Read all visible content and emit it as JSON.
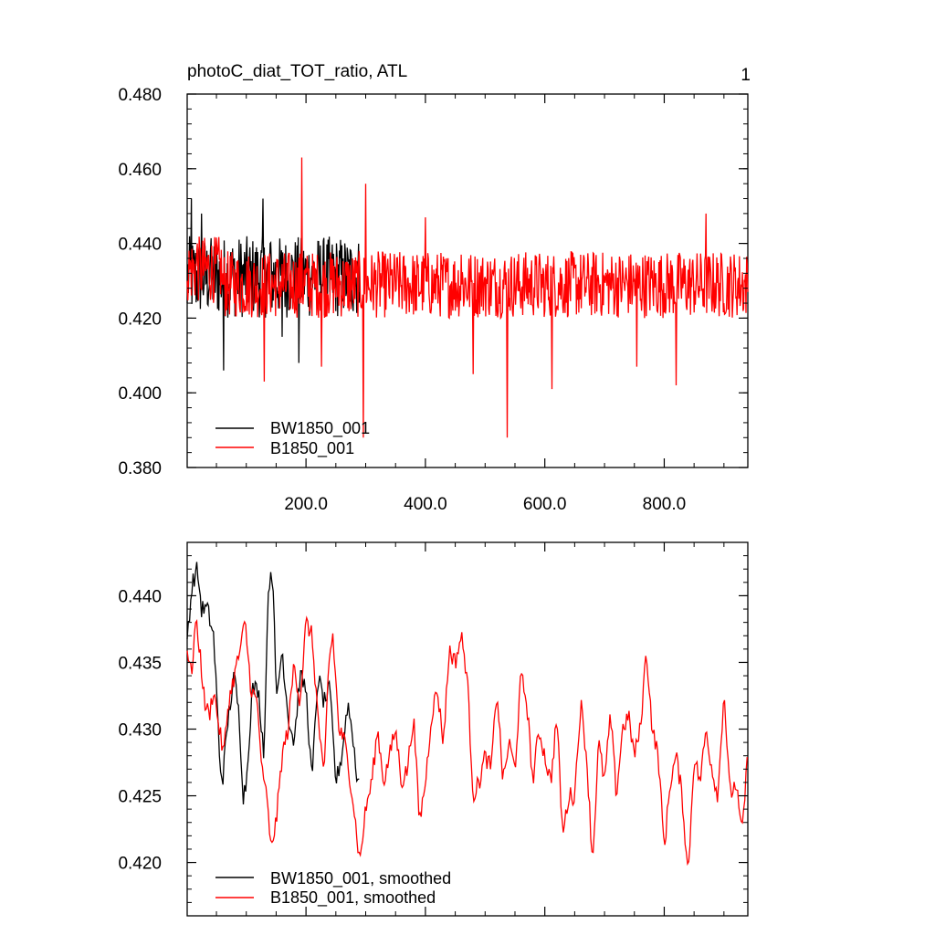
{
  "chart_data": [
    {
      "type": "line",
      "title": "photoC_diat_TOT_ratio, ATL",
      "corner_label": "1",
      "xlabel": "",
      "ylabel": "",
      "xlim": [
        1,
        940
      ],
      "ylim": [
        0.38,
        0.48
      ],
      "yticks": [
        0.38,
        0.4,
        0.42,
        0.44,
        0.46,
        0.48
      ],
      "ytick_labels": [
        "0.380",
        "0.400",
        "0.420",
        "0.440",
        "0.460",
        "0.480"
      ],
      "xticks": [
        200,
        400,
        600,
        800
      ],
      "xtick_labels": [
        "200.0",
        "400.0",
        "600.0",
        "800.0"
      ],
      "legend_position": "bottom-left",
      "series": [
        {
          "name": "BW1850_001",
          "color": "#000000",
          "x_start": 1,
          "x_end": 290,
          "mean": 0.431,
          "amplitude": 0.011,
          "keypoints": [
            [
              1,
              0.424
            ],
            [
              8,
              0.452
            ],
            [
              25,
              0.448
            ],
            [
              40,
              0.438
            ],
            [
              62,
              0.406
            ],
            [
              80,
              0.436
            ],
            [
              110,
              0.43
            ],
            [
              128,
              0.452
            ],
            [
              140,
              0.44
            ],
            [
              160,
              0.415
            ],
            [
              175,
              0.43
            ],
            [
              188,
              0.408
            ],
            [
              210,
              0.434
            ],
            [
              240,
              0.427
            ],
            [
              262,
              0.436
            ],
            [
              280,
              0.43
            ],
            [
              290,
              0.427
            ]
          ]
        },
        {
          "name": "B1850_001",
          "color": "#ff0000",
          "x_start": 1,
          "x_end": 940,
          "mean": 0.429,
          "amplitude": 0.009,
          "keypoints": [
            [
              1,
              0.43
            ],
            [
              18,
              0.44
            ],
            [
              60,
              0.429
            ],
            [
              130,
              0.403
            ],
            [
              193,
              0.463
            ],
            [
              226,
              0.407
            ],
            [
              296,
              0.388
            ],
            [
              300,
              0.456
            ],
            [
              330,
              0.428
            ],
            [
              385,
              0.422
            ],
            [
              400,
              0.447
            ],
            [
              412,
              0.424
            ],
            [
              460,
              0.437
            ],
            [
              480,
              0.405
            ],
            [
              500,
              0.431
            ],
            [
              537,
              0.388
            ],
            [
              600,
              0.422
            ],
            [
              612,
              0.401
            ],
            [
              700,
              0.431
            ],
            [
              754,
              0.407
            ],
            [
              820,
              0.402
            ],
            [
              870,
              0.448
            ],
            [
              900,
              0.424
            ],
            [
              940,
              0.427
            ]
          ]
        }
      ]
    },
    {
      "type": "line",
      "title": "",
      "xlabel": "",
      "ylabel": "",
      "xlim": [
        1,
        940
      ],
      "ylim": [
        0.416,
        0.444
      ],
      "yticks": [
        0.42,
        0.425,
        0.43,
        0.435,
        0.44
      ],
      "ytick_labels": [
        "0.420",
        "0.425",
        "0.430",
        "0.435",
        "0.440"
      ],
      "xticks": [
        200,
        400,
        600,
        800
      ],
      "xtick_labels": [
        "",
        "",
        "",
        ""
      ],
      "legend_position": "bottom-left",
      "series": [
        {
          "name": "BW1850_001, smoothed",
          "color": "#000000",
          "x": [
            1,
            10,
            18,
            25,
            35,
            45,
            50,
            55,
            60,
            70,
            80,
            88,
            95,
            100,
            110,
            120,
            130,
            135,
            140,
            145,
            150,
            160,
            170,
            180,
            190,
            200,
            210,
            220,
            230,
            240,
            250,
            260,
            270,
            280,
            285,
            290
          ],
          "y": [
            0.437,
            0.441,
            0.442,
            0.439,
            0.439,
            0.437,
            0.433,
            0.428,
            0.426,
            0.431,
            0.434,
            0.431,
            0.425,
            0.426,
            0.433,
            0.433,
            0.428,
            0.438,
            0.442,
            0.441,
            0.432,
            0.436,
            0.431,
            0.429,
            0.434,
            0.433,
            0.426,
            0.434,
            0.432,
            0.433,
            0.426,
            0.428,
            0.432,
            0.429,
            0.426,
            0.427
          ]
        },
        {
          "name": "B1850_001, smoothed",
          "color": "#ff0000",
          "x": [
            1,
            8,
            15,
            22,
            30,
            38,
            45,
            55,
            62,
            70,
            80,
            90,
            98,
            108,
            118,
            128,
            135,
            140,
            150,
            160,
            170,
            180,
            190,
            200,
            210,
            220,
            230,
            238,
            245,
            255,
            265,
            278,
            290,
            300,
            310,
            320,
            330,
            340,
            350,
            360,
            370,
            380,
            390,
            400,
            410,
            420,
            430,
            440,
            450,
            460,
            470,
            480,
            490,
            500,
            510,
            520,
            530,
            540,
            550,
            560,
            570,
            580,
            590,
            600,
            610,
            620,
            630,
            640,
            650,
            660,
            670,
            680,
            690,
            700,
            710,
            720,
            730,
            740,
            750,
            760,
            770,
            780,
            790,
            800,
            810,
            820,
            830,
            840,
            850,
            860,
            870,
            880,
            890,
            900,
            910,
            920,
            930,
            940
          ],
          "y": [
            0.436,
            0.434,
            0.438,
            0.436,
            0.432,
            0.431,
            0.433,
            0.43,
            0.428,
            0.432,
            0.434,
            0.436,
            0.438,
            0.433,
            0.432,
            0.426,
            0.425,
            0.421,
            0.423,
            0.428,
            0.43,
            0.435,
            0.432,
            0.438,
            0.437,
            0.431,
            0.426,
            0.435,
            0.437,
            0.43,
            0.429,
            0.425,
            0.42,
            0.424,
            0.426,
            0.43,
            0.426,
            0.428,
            0.43,
            0.426,
            0.427,
            0.431,
            0.423,
            0.426,
            0.431,
            0.433,
            0.429,
            0.436,
            0.435,
            0.437,
            0.434,
            0.425,
            0.426,
            0.428,
            0.427,
            0.433,
            0.426,
            0.429,
            0.427,
            0.434,
            0.432,
            0.426,
            0.43,
            0.428,
            0.426,
            0.431,
            0.422,
            0.425,
            0.425,
            0.432,
            0.428,
            0.42,
            0.429,
            0.426,
            0.431,
            0.425,
            0.43,
            0.431,
            0.428,
            0.43,
            0.436,
            0.43,
            0.428,
            0.421,
            0.426,
            0.428,
            0.425,
            0.419,
            0.428,
            0.426,
            0.43,
            0.427,
            0.425,
            0.433,
            0.425,
            0.426,
            0.422,
            0.428
          ]
        }
      ]
    }
  ]
}
